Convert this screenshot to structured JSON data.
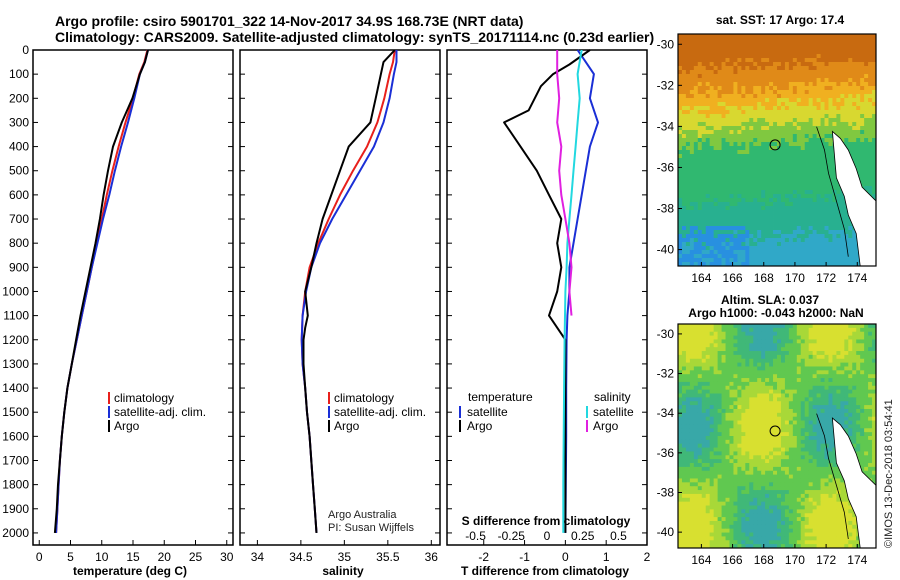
{
  "header": {
    "line1": "Argo profile: csiro 5901701_322 14-Nov-2017 34.9S 168.73E (NRT data)",
    "line2": "Climatology: CARS2009. Satellite-adjusted climatology: synTS_20171114.nc (0.23d earlier)"
  },
  "colors": {
    "argo": "#000000",
    "climatology": "#e8201c",
    "satellite": "#1a2fd6",
    "sal_satellite": "#22d8e0",
    "sal_argo": "#e020e0"
  },
  "chart_data": [
    {
      "type": "line",
      "id": "temperature",
      "xlabel": "temperature (deg C)",
      "ylabel": "",
      "xlim": [
        -1,
        31
      ],
      "ylim": [
        2050,
        0
      ],
      "xticks": [
        0,
        5,
        10,
        15,
        20,
        25,
        30
      ],
      "yticks": [
        0,
        100,
        200,
        300,
        400,
        500,
        600,
        700,
        800,
        900,
        1000,
        1100,
        1200,
        1300,
        1400,
        1500,
        1600,
        1700,
        1800,
        1900,
        2000
      ],
      "legend": [
        "climatology",
        "satellite-adj. clim.",
        "Argo"
      ],
      "series": [
        {
          "name": "climatology",
          "color": "#e8201c",
          "points": [
            [
              17.3,
              0
            ],
            [
              16.8,
              50
            ],
            [
              16.0,
              100
            ],
            [
              15.0,
              200
            ],
            [
              13.8,
              300
            ],
            [
              12.7,
              400
            ],
            [
              11.7,
              500
            ],
            [
              10.8,
              600
            ],
            [
              10.0,
              700
            ],
            [
              9.2,
              800
            ],
            [
              8.4,
              900
            ],
            [
              7.6,
              1000
            ],
            [
              6.8,
              1100
            ],
            [
              6.0,
              1200
            ],
            [
              5.2,
              1300
            ],
            [
              4.5,
              1400
            ],
            [
              4.0,
              1500
            ],
            [
              3.6,
              1600
            ],
            [
              3.3,
              1700
            ],
            [
              3.1,
              1800
            ],
            [
              2.9,
              1900
            ],
            [
              2.7,
              2000
            ]
          ]
        },
        {
          "name": "satellite-adj. clim.",
          "color": "#1a2fd6",
          "points": [
            [
              17.4,
              0
            ],
            [
              16.9,
              50
            ],
            [
              16.1,
              100
            ],
            [
              15.2,
              200
            ],
            [
              14.2,
              300
            ],
            [
              13.1,
              400
            ],
            [
              12.1,
              500
            ],
            [
              11.2,
              600
            ],
            [
              10.2,
              700
            ],
            [
              9.3,
              800
            ],
            [
              8.4,
              900
            ],
            [
              7.6,
              1000
            ],
            [
              6.8,
              1100
            ],
            [
              6.0,
              1200
            ],
            [
              5.2,
              1300
            ],
            [
              4.5,
              1400
            ],
            [
              4.0,
              1500
            ],
            [
              3.6,
              1600
            ],
            [
              3.3,
              1700
            ],
            [
              3.1,
              1800
            ],
            [
              2.9,
              1900
            ],
            [
              2.7,
              2000
            ]
          ]
        },
        {
          "name": "Argo",
          "color": "#000000",
          "points": [
            [
              17.4,
              0
            ],
            [
              16.9,
              50
            ],
            [
              16.1,
              100
            ],
            [
              14.9,
              200
            ],
            [
              13.2,
              300
            ],
            [
              11.8,
              400
            ],
            [
              11.0,
              500
            ],
            [
              10.3,
              600
            ],
            [
              9.7,
              700
            ],
            [
              9.0,
              800
            ],
            [
              8.2,
              900
            ],
            [
              7.4,
              1000
            ],
            [
              6.6,
              1100
            ],
            [
              5.9,
              1200
            ],
            [
              5.2,
              1300
            ],
            [
              4.5,
              1400
            ],
            [
              4.0,
              1500
            ],
            [
              3.6,
              1600
            ],
            [
              3.3,
              1700
            ],
            [
              3.0,
              1800
            ],
            [
              2.8,
              1900
            ],
            [
              2.5,
              2000
            ]
          ]
        }
      ]
    },
    {
      "type": "line",
      "id": "salinity",
      "xlabel": "salinity",
      "xlim": [
        33.8,
        36.1
      ],
      "ylim": [
        2050,
        0
      ],
      "xticks": [
        34,
        34.5,
        35,
        35.5,
        36
      ],
      "legend": [
        "climatology",
        "satellite-adj. clim.",
        "Argo"
      ],
      "annotation": [
        "Argo Australia",
        "PI: Susan Wijffels"
      ],
      "series": [
        {
          "name": "climatology",
          "color": "#e8201c",
          "points": [
            [
              35.58,
              0
            ],
            [
              35.56,
              50
            ],
            [
              35.52,
              100
            ],
            [
              35.46,
              200
            ],
            [
              35.38,
              300
            ],
            [
              35.26,
              400
            ],
            [
              35.1,
              500
            ],
            [
              34.95,
              600
            ],
            [
              34.82,
              700
            ],
            [
              34.7,
              800
            ],
            [
              34.6,
              900
            ],
            [
              34.55,
              1000
            ],
            [
              34.52,
              1100
            ],
            [
              34.51,
              1200
            ],
            [
              34.52,
              1300
            ],
            [
              34.55,
              1400
            ],
            [
              34.57,
              1500
            ],
            [
              34.6,
              1600
            ],
            [
              34.62,
              1700
            ],
            [
              34.64,
              1800
            ],
            [
              34.66,
              1900
            ],
            [
              34.68,
              2000
            ]
          ]
        },
        {
          "name": "satellite-adj. clim.",
          "color": "#1a2fd6",
          "points": [
            [
              35.6,
              0
            ],
            [
              35.6,
              50
            ],
            [
              35.57,
              100
            ],
            [
              35.52,
              200
            ],
            [
              35.45,
              300
            ],
            [
              35.34,
              400
            ],
            [
              35.18,
              500
            ],
            [
              35.02,
              600
            ],
            [
              34.86,
              700
            ],
            [
              34.72,
              800
            ],
            [
              34.62,
              900
            ],
            [
              34.56,
              1000
            ],
            [
              34.52,
              1100
            ],
            [
              34.51,
              1200
            ],
            [
              34.52,
              1300
            ],
            [
              34.55,
              1400
            ],
            [
              34.57,
              1500
            ],
            [
              34.6,
              1600
            ],
            [
              34.62,
              1700
            ],
            [
              34.64,
              1800
            ],
            [
              34.66,
              1900
            ],
            [
              34.68,
              2000
            ]
          ]
        },
        {
          "name": "Argo",
          "color": "#000000",
          "points": [
            [
              35.58,
              0
            ],
            [
              35.45,
              50
            ],
            [
              35.42,
              100
            ],
            [
              35.36,
              200
            ],
            [
              35.3,
              300
            ],
            [
              35.05,
              400
            ],
            [
              34.95,
              500
            ],
            [
              34.85,
              600
            ],
            [
              34.75,
              700
            ],
            [
              34.68,
              800
            ],
            [
              34.62,
              900
            ],
            [
              34.55,
              1000
            ],
            [
              34.58,
              1100
            ],
            [
              34.55,
              1150
            ],
            [
              34.53,
              1200
            ],
            [
              34.53,
              1300
            ],
            [
              34.55,
              1400
            ],
            [
              34.57,
              1500
            ],
            [
              34.6,
              1600
            ],
            [
              34.62,
              1700
            ],
            [
              34.64,
              1800
            ],
            [
              34.66,
              1900
            ],
            [
              34.68,
              2000
            ]
          ]
        }
      ]
    },
    {
      "type": "line",
      "id": "differences",
      "xlabel": "T difference from climatology",
      "xlabel_top": "S difference from climatology",
      "xlim": [
        -2.9,
        2.0
      ],
      "ylim": [
        2050,
        0
      ],
      "xticks": [
        -2,
        -1,
        0,
        1,
        2
      ],
      "xticks_top": [
        "-0.5",
        "-0.25",
        "0",
        "0.25",
        "0.5"
      ],
      "legend_left_title": "temperature",
      "legend_right_title": "salinity",
      "legend_left": [
        "satellite",
        "Argo"
      ],
      "legend_right": [
        "satellite",
        "Argo"
      ],
      "series": [
        {
          "name": "T satellite",
          "color": "#1a2fd6",
          "points": [
            [
              0.3,
              0
            ],
            [
              0.5,
              50
            ],
            [
              0.7,
              100
            ],
            [
              0.6,
              200
            ],
            [
              0.8,
              300
            ],
            [
              0.6,
              400
            ],
            [
              0.5,
              500
            ],
            [
              0.4,
              600
            ],
            [
              0.3,
              700
            ],
            [
              0.2,
              800
            ],
            [
              0.1,
              900
            ],
            [
              0.1,
              1000
            ],
            [
              0.05,
              1100
            ],
            [
              0.03,
              1200
            ],
            [
              0.02,
              1400
            ],
            [
              0.02,
              1600
            ],
            [
              0.01,
              1800
            ],
            [
              0.0,
              2000
            ]
          ]
        },
        {
          "name": "T Argo",
          "color": "#000000",
          "points": [
            [
              0.6,
              0
            ],
            [
              0.1,
              60
            ],
            [
              -0.3,
              100
            ],
            [
              -0.6,
              150
            ],
            [
              -0.9,
              250
            ],
            [
              -1.5,
              300
            ],
            [
              -1.1,
              400
            ],
            [
              -0.7,
              500
            ],
            [
              -0.4,
              600
            ],
            [
              -0.1,
              700
            ],
            [
              -0.2,
              800
            ],
            [
              -0.1,
              900
            ],
            [
              -0.2,
              1000
            ],
            [
              -0.4,
              1100
            ],
            [
              0.0,
              1200
            ],
            [
              0.0,
              1400
            ],
            [
              0.0,
              1600
            ],
            [
              0.0,
              1800
            ],
            [
              0.0,
              2000
            ]
          ]
        },
        {
          "name": "S satellite",
          "color": "#22d8e0",
          "points": [
            [
              0.4,
              0
            ],
            [
              0.3,
              100
            ],
            [
              0.35,
              200
            ],
            [
              0.3,
              300
            ],
            [
              0.25,
              400
            ],
            [
              0.2,
              500
            ],
            [
              0.15,
              600
            ],
            [
              0.1,
              700
            ],
            [
              0.05,
              800
            ],
            [
              0.03,
              900
            ],
            [
              0.0,
              1000
            ],
            [
              -0.02,
              1200
            ],
            [
              -0.03,
              1400
            ],
            [
              -0.04,
              1600
            ],
            [
              -0.05,
              1800
            ],
            [
              -0.05,
              2000
            ]
          ]
        },
        {
          "name": "S Argo",
          "color": "#e020e0",
          "points": [
            [
              -0.2,
              0
            ],
            [
              -0.2,
              100
            ],
            [
              -0.15,
              200
            ],
            [
              -0.2,
              300
            ],
            [
              -0.1,
              400
            ],
            [
              -0.15,
              500
            ],
            [
              -0.1,
              600
            ],
            [
              0.0,
              700
            ],
            [
              0.1,
              800
            ],
            [
              0.15,
              900
            ],
            [
              0.1,
              1000
            ],
            [
              0.15,
              1100
            ]
          ]
        }
      ]
    },
    {
      "type": "heatmap",
      "id": "sst_map",
      "title": "sat. SST: 17 Argo: 17.4",
      "xticks": [
        164,
        166,
        168,
        170,
        172,
        174
      ],
      "yticks": [
        -30,
        -32,
        -34,
        -36,
        -38,
        -40
      ],
      "xlim": [
        162.5,
        175.2
      ],
      "ylim": [
        -40.8,
        -29.5
      ],
      "marker": {
        "lon": 168.73,
        "lat": -34.9
      }
    },
    {
      "type": "heatmap",
      "id": "sla_map",
      "title": "Altim. SLA: 0.037",
      "subtitle": "Argo h1000: -0.043 h2000: NaN",
      "xticks": [
        164,
        166,
        168,
        170,
        172,
        174
      ],
      "yticks": [
        -30,
        -32,
        -34,
        -36,
        -38,
        -40
      ],
      "xlim": [
        162.5,
        175.2
      ],
      "ylim": [
        -40.8,
        -29.5
      ],
      "marker": {
        "lon": 168.73,
        "lat": -34.9
      }
    }
  ],
  "stamp": "©IMOS 13-Dec-2018 03:54:41"
}
